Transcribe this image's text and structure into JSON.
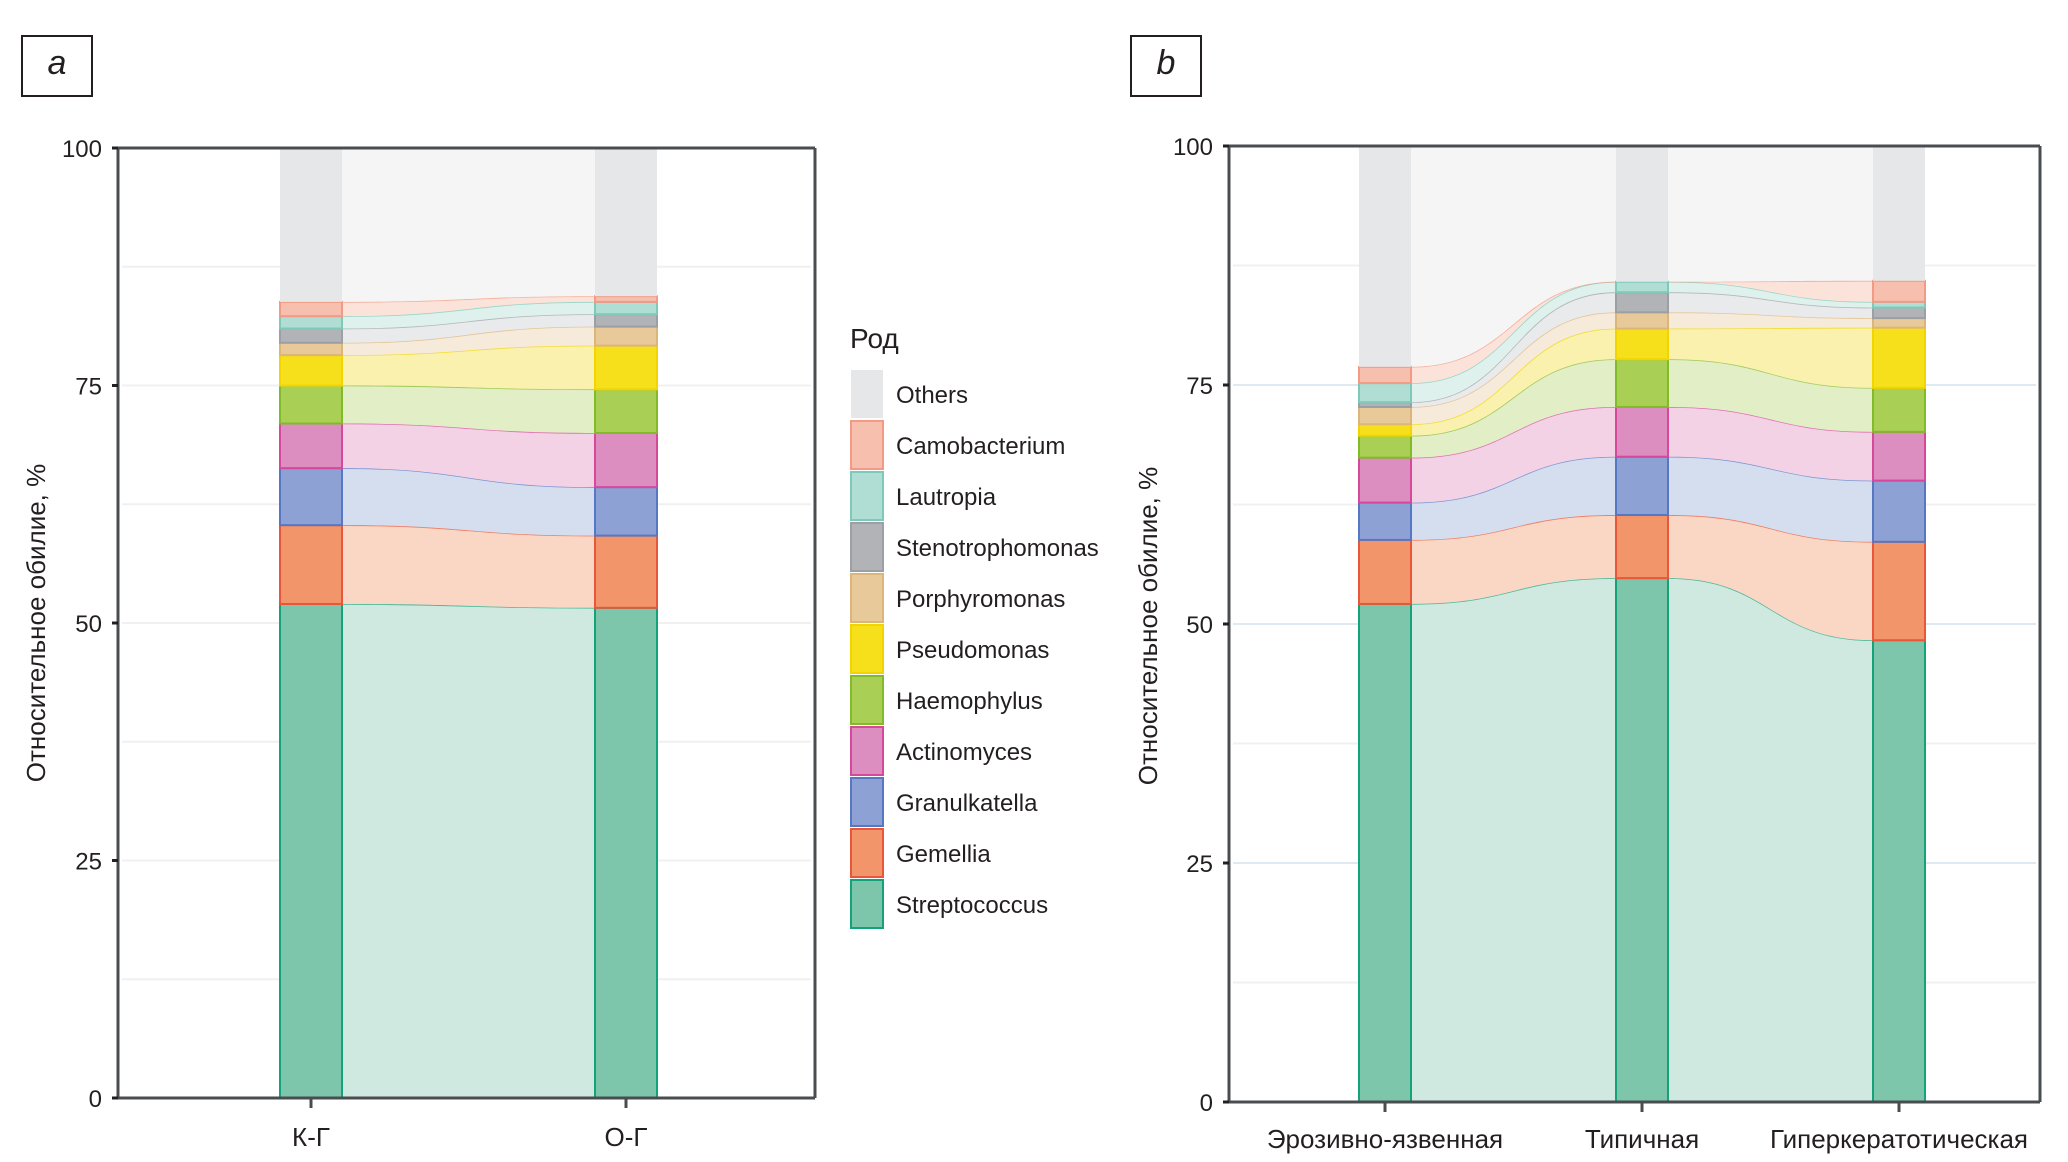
{
  "chart_data": [
    {
      "panel": "a",
      "type": "stacked-bar-alluvial",
      "ylabel": "Относительное обилие, %",
      "ylim": [
        0,
        100
      ],
      "yticks": [
        0,
        25,
        50,
        75,
        100
      ],
      "grid": true,
      "categories": [
        "К-Г",
        "О-Г"
      ],
      "series": [
        {
          "name": "Streptococcus",
          "values": [
            52.0,
            51.6
          ]
        },
        {
          "name": "Gemellia",
          "values": [
            8.3,
            7.6
          ]
        },
        {
          "name": "Granulkatella",
          "values": [
            6.0,
            5.1
          ]
        },
        {
          "name": "Actinomyces",
          "values": [
            4.7,
            5.7
          ]
        },
        {
          "name": "Haemophylus",
          "values": [
            4.0,
            4.6
          ]
        },
        {
          "name": "Pseudomonas",
          "values": [
            3.2,
            4.6
          ]
        },
        {
          "name": "Porphyromonas",
          "values": [
            1.3,
            2.0
          ]
        },
        {
          "name": "Stenotrophomonas",
          "values": [
            1.5,
            1.3
          ]
        },
        {
          "name": "Lautropia",
          "values": [
            1.3,
            1.3
          ]
        },
        {
          "name": "Camobacterium",
          "values": [
            1.5,
            0.6
          ]
        },
        {
          "name": "Others",
          "values": [
            16.2,
            15.6
          ]
        }
      ]
    },
    {
      "panel": "b",
      "type": "stacked-bar-alluvial",
      "ylabel": "Относительное обилие, %",
      "ylim": [
        0,
        100
      ],
      "yticks": [
        0,
        25,
        50,
        75,
        100
      ],
      "grid": true,
      "categories": [
        "Эрозивно-язвенная",
        "Типичная",
        "Гиперкератотическая"
      ],
      "series": [
        {
          "name": "Streptococcus",
          "values": [
            52.1,
            54.8,
            48.3
          ]
        },
        {
          "name": "Gemellia",
          "values": [
            6.7,
            6.6,
            10.3
          ]
        },
        {
          "name": "Granulkatella",
          "values": [
            3.9,
            6.1,
            6.4
          ]
        },
        {
          "name": "Actinomyces",
          "values": [
            4.7,
            5.2,
            5.1
          ]
        },
        {
          "name": "Haemophylus",
          "values": [
            2.3,
            5.0,
            4.6
          ]
        },
        {
          "name": "Pseudomonas",
          "values": [
            1.2,
            3.2,
            6.3
          ]
        },
        {
          "name": "Porphyromonas",
          "values": [
            1.8,
            1.7,
            1.0
          ]
        },
        {
          "name": "Stenotrophomonas",
          "values": [
            0.5,
            2.1,
            1.1
          ]
        },
        {
          "name": "Lautropia",
          "values": [
            2.0,
            1.1,
            0.6
          ]
        },
        {
          "name": "Camobacterium",
          "values": [
            1.7,
            0.0,
            2.2
          ]
        },
        {
          "name": "Others",
          "values": [
            23.1,
            14.2,
            14.1
          ]
        }
      ]
    }
  ],
  "panel_labels": [
    "a",
    "b"
  ],
  "legend": {
    "title": "Род",
    "position": "between panels",
    "items": [
      {
        "name": "Others",
        "color": "#e6e7e8"
      },
      {
        "name": "Camobacterium",
        "color": "#f7bfae"
      },
      {
        "name": "Lautropia",
        "color": "#b0ddd4"
      },
      {
        "name": "Stenotrophomonas",
        "color": "#b1b3b6"
      },
      {
        "name": "Porphyromonas",
        "color": "#e8c99a"
      },
      {
        "name": "Pseudomonas",
        "color": "#f6e01b"
      },
      {
        "name": "Haemophylus",
        "color": "#a9cf54"
      },
      {
        "name": "Actinomyces",
        "color": "#dc8ec0"
      },
      {
        "name": "Granulkatella",
        "color": "#8ea1d4"
      },
      {
        "name": "Gemellia",
        "color": "#f2956a"
      },
      {
        "name": "Streptococcus",
        "color": "#7ec6ab"
      }
    ]
  },
  "colors": {
    "Streptococcus": {
      "fill": "#7ec6ab",
      "edge": "#14a27a",
      "flow": "#cfe9e1"
    },
    "Gemellia": {
      "fill": "#f2956a",
      "edge": "#e8573a",
      "flow": "#fad6c4"
    },
    "Granulkatella": {
      "fill": "#8ea1d4",
      "edge": "#5577c4",
      "flow": "#d5deef"
    },
    "Actinomyces": {
      "fill": "#dc8ec0",
      "edge": "#d5489a",
      "flow": "#f4d2e6"
    },
    "Haemophylus": {
      "fill": "#a9cf54",
      "edge": "#82bb2a",
      "flow": "#e2eec6"
    },
    "Pseudomonas": {
      "fill": "#f6e01b",
      "edge": "#f1d400",
      "flow": "#f9f1ad"
    },
    "Porphyromonas": {
      "fill": "#e8c99a",
      "edge": "#dcb57a",
      "flow": "#f6eadb"
    },
    "Stenotrophomonas": {
      "fill": "#b1b3b6",
      "edge": "#9c9fa3",
      "flow": "#e9eaec"
    },
    "Lautropia": {
      "fill": "#b0ddd4",
      "edge": "#7fc9bb",
      "flow": "#def1ed"
    },
    "Camobacterium": {
      "fill": "#f7bfae",
      "edge": "#f29a85",
      "flow": "#fbe3da"
    },
    "Others": {
      "fill": "#e6e7e8",
      "edge": "#e6e7e8",
      "flow": "#f5f5f5"
    }
  }
}
